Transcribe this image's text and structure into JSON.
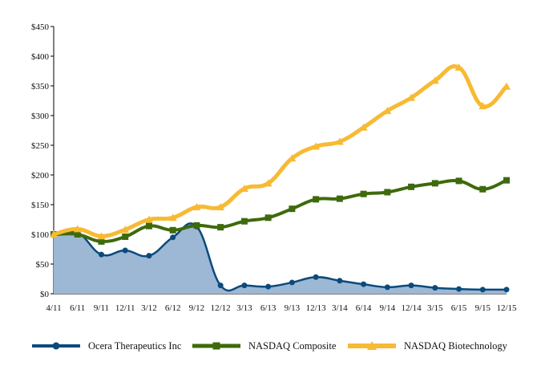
{
  "chart_data": {
    "type": "line",
    "title": "",
    "xlabel": "",
    "ylabel": "",
    "ylim": [
      0,
      450
    ],
    "yticks": [
      0,
      50,
      100,
      150,
      200,
      250,
      300,
      350,
      400,
      450
    ],
    "ytick_labels": [
      "$0",
      "$50",
      "$100",
      "$150",
      "$200",
      "$250",
      "$300",
      "$350",
      "$400",
      "$450"
    ],
    "categories": [
      "4/11",
      "6/11",
      "9/11",
      "12/11",
      "3/12",
      "6/12",
      "9/12",
      "12/12",
      "3/13",
      "6/13",
      "9/13",
      "12/13",
      "3/14",
      "6/14",
      "9/14",
      "12/14",
      "3/15",
      "6/15",
      "9/15",
      "12/15"
    ],
    "series": [
      {
        "name": "Ocera Therapeutics Inc",
        "color": "#0b4a7c",
        "marker": "circle",
        "fill": "#9cb8d4",
        "values": [
          100,
          103,
          66,
          73,
          64,
          95,
          113,
          14,
          14,
          12,
          19,
          28,
          22,
          16,
          11,
          14,
          10,
          8,
          7,
          7
        ]
      },
      {
        "name": "NASDAQ Composite",
        "color": "#3e6a0c",
        "marker": "square",
        "values": [
          100,
          100,
          88,
          96,
          114,
          107,
          115,
          112,
          122,
          128,
          143,
          159,
          160,
          168,
          171,
          180,
          186,
          190,
          176,
          191
        ]
      },
      {
        "name": "NASDAQ Biotechnology",
        "color": "#f7ba33",
        "marker": "triangle",
        "values": [
          100,
          109,
          97,
          108,
          125,
          128,
          146,
          146,
          177,
          186,
          228,
          248,
          256,
          280,
          308,
          330,
          359,
          381,
          316,
          349
        ]
      }
    ]
  }
}
